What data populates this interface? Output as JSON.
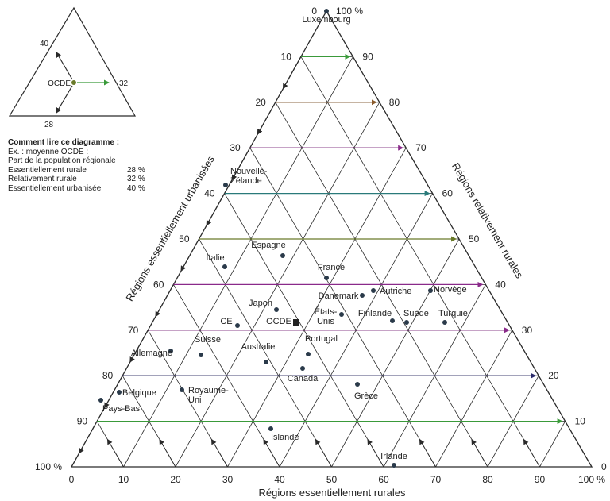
{
  "chart_data": {
    "type": "scatter",
    "subtype": "ternary",
    "axes": {
      "bottom": {
        "label": "Régions essentiellement rurales",
        "ticks": [
          "0",
          "10",
          "20",
          "30",
          "40",
          "50",
          "60",
          "70",
          "80",
          "90",
          "100 %"
        ]
      },
      "left": {
        "label": "Régions essentiellement urbanisées",
        "ticks": [
          "0",
          "10",
          "20",
          "30",
          "40",
          "50",
          "60",
          "70",
          "80",
          "90",
          "100 %"
        ]
      },
      "right": {
        "label": "Régions relativement rurales",
        "ticks": [
          "100 %",
          "90",
          "80",
          "70",
          "60",
          "50",
          "40",
          "30",
          "20",
          "10",
          "0"
        ]
      }
    },
    "grid": true,
    "series": [
      {
        "values": [
          {
            "label": "Luxembourg",
            "essentiellement_rurale": 0,
            "relativement_rurale": 100,
            "essentiellement_urbanisee": 0
          },
          {
            "label": "Nouvelle-Zélande",
            "essentiellement_rurale": 0,
            "relativement_rurale": 60,
            "essentiellement_urbanisee": 40
          },
          {
            "label": "Espagne",
            "essentiellement_rurale": 32,
            "relativement_rurale": 20,
            "essentiellement_urbanisee": 48
          },
          {
            "label": "Italie",
            "essentiellement_rurale": 10,
            "relativement_rurale": 35,
            "essentiellement_urbanisee": 55
          },
          {
            "label": "France",
            "essentiellement_rurale": 44,
            "relativement_rurale": 17,
            "essentiellement_urbanisee": 39
          },
          {
            "label": "Danemark",
            "essentiellement_rurale": 47,
            "relativement_rurale": 18,
            "essentiellement_urbanisee": 35
          },
          {
            "label": "Autriche",
            "essentiellement_rurale": 52,
            "relativement_rurale": 12,
            "essentiellement_urbanisee": 36
          },
          {
            "label": "Norvège",
            "essentiellement_rurale": 63,
            "relativement_rurale": 0,
            "essentiellement_urbanisee": 37
          },
          {
            "label": "Japon",
            "essentiellement_rurale": 13,
            "relativement_rurale": 24,
            "essentiellement_urbanisee": 63
          },
          {
            "label": "États-Unis",
            "essentiellement_rurale": 35,
            "relativement_rurale": 2,
            "essentiellement_urbanisee": 63
          },
          {
            "label": "Finlande",
            "essentiellement_rurale": 57,
            "relativement_rurale": -4,
            "essentiellement_urbanisee": 47
          },
          {
            "label": "Suède",
            "essentiellement_rurale": 53,
            "relativement_rurale": 8,
            "essentiellement_urbanisee": 39
          },
          {
            "label": "Turquie",
            "essentiellement_rurale": 62,
            "relativement_rurale": 1,
            "essentiellement_urbanisee": 37
          },
          {
            "label": "CE",
            "essentiellement_rurale": 22,
            "relativement_rurale": 12,
            "essentiellement_urbanisee": 66
          },
          {
            "label": "Allemagne",
            "essentiellement_rurale": 0,
            "relativement_rurale": 26,
            "essentiellement_urbanisee": 74
          },
          {
            "label": "Suisse",
            "essentiellement_rurale": 13,
            "relativement_rurale": 13,
            "essentiellement_urbanisee": 74
          },
          {
            "label": "Australie",
            "essentiellement_rurale": 30,
            "relativement_rurale": -3,
            "essentiellement_urbanisee": 73
          },
          {
            "label": "Portugal",
            "essentiellement_rurale": 38,
            "relativement_rurale": -11,
            "essentiellement_urbanisee": 73
          },
          {
            "label": "Canada",
            "essentiellement_rurale": 35,
            "relativement_rurale": -14,
            "essentiellement_urbanisee": 79
          },
          {
            "label": "Belgique",
            "essentiellement_rurale": 0,
            "relativement_rurale": 16,
            "essentiellement_urbanisee": 84
          },
          {
            "label": "Royaume-Uni",
            "essentiellement_rurale": 8,
            "relativement_rurale": 8,
            "essentiellement_urbanisee": 84
          },
          {
            "label": "Pays-Bas",
            "essentiellement_rurale": 0,
            "relativement_rurale": 12,
            "essentiellement_urbanisee": 88
          },
          {
            "label": "Grèce",
            "essentiellement_rurale": 49,
            "relativement_rurale": -16,
            "essentiellement_urbanisee": 67
          },
          {
            "label": "Islande",
            "essentiellement_rurale": 18,
            "relativement_rurale": 14,
            "essentiellement_urbanisee": 68
          },
          {
            "label": "Irlande",
            "essentiellement_rurale": 62,
            "relativement_rurale": 38,
            "essentiellement_urbanisee": 0
          },
          {
            "label": "OCDE",
            "essentiellement_rurale": 28,
            "relativement_rurale": 32,
            "essentiellement_urbanisee": 40
          }
        ]
      }
    ],
    "inset": {
      "labels": [
        "OCDE",
        "40",
        "32",
        "28"
      ]
    }
  },
  "legend": {
    "title": "Comment lire ce diagramme :",
    "line1": "Ex. : moyenne OCDE :",
    "line2": "Part de la population régionale",
    "rows": [
      {
        "label": "Essentiellement rurale",
        "value": "28 %"
      },
      {
        "label": "Relativement rurale",
        "value": "32 %"
      },
      {
        "label": "Essentiellement urbanisée",
        "value": "40 %"
      }
    ]
  },
  "point_labels": {
    "Luxembourg": "Luxembourg",
    "Nouvelle-Zélande": "Nouvelle-\nZélande",
    "Espagne": "Espagne",
    "Italie": "Italie",
    "France": "France",
    "Danemark": "Danemark",
    "Autriche": "Autriche",
    "Norvège": "Norvège",
    "Japon": "Japon",
    "États-Unis": "États-\nUnis",
    "Finlande": "Finlande",
    "Suède": "Suède",
    "Turquie": "Turquie",
    "CE": "CE",
    "OCDE": "OCDE",
    "Allemagne": "Allemagne",
    "Suisse": "Suisse",
    "Australie": "Australie",
    "Portugal": "Portugal",
    "Canada": "Canada",
    "Belgique": "Belgique",
    "Royaume-Uni": "Royaume-\nUni",
    "Pays-Bas": "Pays-Bas",
    "Grèce": "Grèce",
    "Islande": "Islande",
    "Irlande": "Irlande"
  },
  "colors": {
    "grid": "#2a2a2a",
    "green": "#3a9a3a",
    "olive": "#6a7a2a",
    "teal": "#2a7a7a",
    "purple": "#8a2a8a",
    "brown": "#8a5a2a",
    "navy": "#2a2a6a",
    "red": "#8a2a2a"
  }
}
